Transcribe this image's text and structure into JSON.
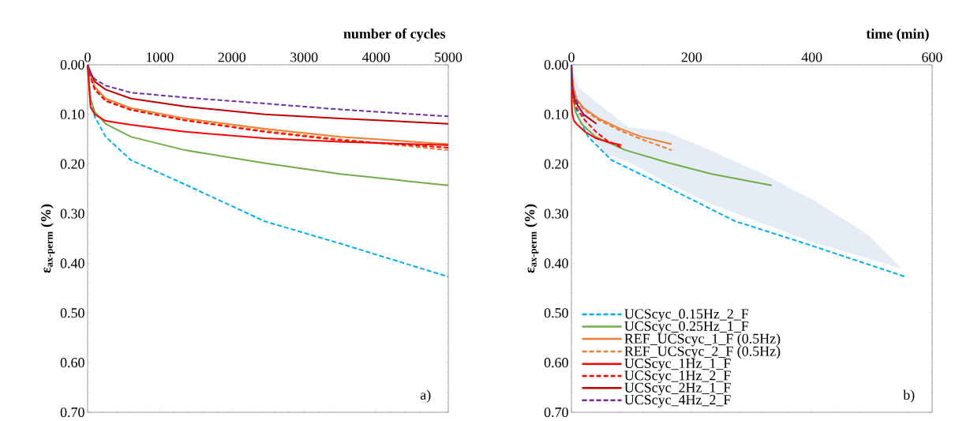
{
  "chart_data": [
    {
      "type": "line",
      "xlabel": "number of cycles",
      "ylabel": "ε$_{ax-perm}$ (%)",
      "xlim": [
        0,
        5000
      ],
      "ylim": [
        0.7,
        0
      ],
      "xticks": [
        0,
        1000,
        2000,
        3000,
        4000,
        5000
      ],
      "yticks": [
        {
          "value": 0,
          "label": "0.00"
        },
        {
          "value": 0.1,
          "label": "0.10"
        },
        {
          "value": 0.2,
          "label": "0.20"
        },
        {
          "value": 0.3,
          "label": "0.30"
        },
        {
          "value": 0.4,
          "label": "0.40"
        },
        {
          "value": 0.5,
          "label": "0.50"
        },
        {
          "value": 0.6,
          "label": "0.60"
        },
        {
          "value": 0.7,
          "label": "0.70"
        }
      ],
      "x": [
        0,
        40,
        100,
        250,
        600,
        1350,
        2450,
        3500,
        5000
      ],
      "annotations": [
        "a)"
      ],
      "series": [
        {
          "color": "#00b0f0",
          "line_style": "dashed",
          "values": [
            0,
            0.075,
            0.105,
            0.145,
            0.192,
            0.241,
            0.315,
            0.36,
            0.427
          ]
        },
        {
          "color": "#70ad47",
          "line_style": "solid",
          "values": [
            0,
            0.068,
            0.095,
            0.119,
            0.145,
            0.172,
            0.198,
            0.22,
            0.243
          ]
        },
        {
          "color": "#ed7d31",
          "line_style": "solid",
          "values": [
            0,
            0.02,
            0.045,
            0.068,
            0.087,
            0.108,
            0.129,
            0.145,
            0.16
          ]
        },
        {
          "color": "#ed7d31",
          "line_style": "dashed",
          "values": [
            0,
            0.022,
            0.048,
            0.071,
            0.09,
            0.111,
            0.133,
            0.15,
            0.172
          ]
        },
        {
          "color": "#ff0000",
          "line_style": "solid",
          "values": [
            0,
            0.085,
            0.1,
            0.113,
            0.121,
            0.135,
            0.148,
            0.155,
            0.162
          ]
        },
        {
          "color": "#ff0000",
          "line_style": "dashed",
          "values": [
            0,
            0.025,
            0.05,
            0.073,
            0.091,
            0.112,
            0.135,
            0.152,
            0.167
          ]
        },
        {
          "color": "#c00000",
          "line_style": "solid",
          "values": [
            0,
            0.015,
            0.034,
            0.05,
            0.068,
            0.084,
            0.1,
            0.108,
            0.119
          ]
        },
        {
          "color": "#7030a0",
          "line_style": "dashed",
          "values": [
            0,
            0.018,
            0.029,
            0.042,
            0.056,
            0.066,
            0.078,
            0.09,
            0.104
          ]
        }
      ]
    },
    {
      "type": "line",
      "xlabel": "time (min)",
      "ylabel": "ε$_{ax-perm}$ (%)",
      "xlim": [
        0,
        600
      ],
      "ylim": [
        0.7,
        0
      ],
      "xticks": [
        0,
        200,
        400,
        600
      ],
      "yticks": [
        {
          "value": 0,
          "label": "0.00"
        },
        {
          "value": 0.1,
          "label": "0.10"
        },
        {
          "value": 0.2,
          "label": "0.20"
        },
        {
          "value": 0.3,
          "label": "0.30"
        },
        {
          "value": 0.4,
          "label": "0.40"
        },
        {
          "value": 0.5,
          "label": "0.50"
        },
        {
          "value": 0.6,
          "label": "0.60"
        },
        {
          "value": 0.7,
          "label": "0.70"
        }
      ],
      "legend": "bottom left",
      "annotations": [
        "b)"
      ],
      "series": [
        {
          "type": "area",
          "color": "#e6ecf6",
          "x": [
            0,
            12,
            56,
            95,
            156,
            231,
            319,
            406,
            494,
            547
          ],
          "values": [
            null,
            null,
            null,
            null,
            null,
            null,
            null,
            null,
            null,
            null
          ],
          "lower": [
            0,
            0.047,
            0.089,
            0.126,
            0.134,
            0.172,
            0.22,
            0.275,
            0.343,
            0.408
          ],
          "upper": [
            0,
            0.11,
            0.178,
            0.196,
            0.236,
            0.28,
            0.32,
            0.359,
            0.39,
            0.41
          ]
        },
        {
          "name": "UCScyc_0.15Hz_2_F",
          "color": "#00b0f0",
          "line_style": "dashed",
          "x": [
            0,
            4.4,
            11.1,
            27.8,
            66.7,
            150,
            272.2,
            388.9,
            555.6
          ],
          "values": [
            0,
            0.075,
            0.105,
            0.145,
            0.192,
            0.241,
            0.315,
            0.36,
            0.427
          ]
        },
        {
          "name": "UCScyc_0.25Hz_1_F",
          "color": "#70ad47",
          "line_style": "solid",
          "x": [
            0,
            2.7,
            6.7,
            16.7,
            40,
            90,
            163.3,
            233.3,
            333.3
          ],
          "values": [
            0,
            0.068,
            0.095,
            0.119,
            0.145,
            0.172,
            0.198,
            0.22,
            0.243
          ]
        },
        {
          "name": "REF_UCScyc_1_F (0.5Hz)",
          "color": "#ed7d31",
          "line_style": "solid",
          "x": [
            0,
            1.3,
            3.3,
            8.3,
            20,
            45,
            81.7,
            116.7,
            166.7
          ],
          "values": [
            0,
            0.02,
            0.045,
            0.068,
            0.087,
            0.108,
            0.129,
            0.145,
            0.16
          ]
        },
        {
          "name": "REF_UCScyc_2_F (0.5Hz)",
          "color": "#ed7d31",
          "line_style": "dashed",
          "x": [
            0,
            1.3,
            3.3,
            8.3,
            20,
            45,
            81.7,
            116.7,
            166.7
          ],
          "values": [
            0,
            0.022,
            0.048,
            0.071,
            0.09,
            0.111,
            0.133,
            0.15,
            0.172
          ]
        },
        {
          "name": "UCScyc_1Hz_1_F",
          "color": "#ff0000",
          "line_style": "solid",
          "x": [
            0,
            0.7,
            1.7,
            4.2,
            10,
            22.5,
            40.8,
            58.3,
            83.3
          ],
          "values": [
            0,
            0.085,
            0.1,
            0.113,
            0.121,
            0.135,
            0.148,
            0.155,
            0.162
          ]
        },
        {
          "name": "UCScyc_1Hz_2_F",
          "color": "#ff0000",
          "line_style": "dashed",
          "x": [
            0,
            0.7,
            1.7,
            4.2,
            10,
            22.5,
            40.8,
            58.3,
            83.3
          ],
          "values": [
            0,
            0.025,
            0.05,
            0.073,
            0.091,
            0.112,
            0.135,
            0.152,
            0.167
          ]
        },
        {
          "name": "UCScyc_2Hz_1_F",
          "color": "#c00000",
          "line_style": "solid",
          "x": [
            0,
            0.3,
            0.8,
            2.1,
            5,
            11.3,
            20.4,
            29.2,
            41.7
          ],
          "values": [
            0,
            0.015,
            0.034,
            0.05,
            0.068,
            0.084,
            0.1,
            0.108,
            0.119
          ]
        },
        {
          "name": "UCScyc_4Hz_2_F",
          "color": "#7030a0",
          "line_style": "dashed",
          "x": [
            0,
            0.2,
            0.4,
            1,
            2.5,
            5.6,
            10.2,
            14.6,
            20.8
          ],
          "values": [
            0,
            0.018,
            0.029,
            0.042,
            0.056,
            0.066,
            0.078,
            0.09,
            0.104
          ]
        }
      ]
    }
  ]
}
